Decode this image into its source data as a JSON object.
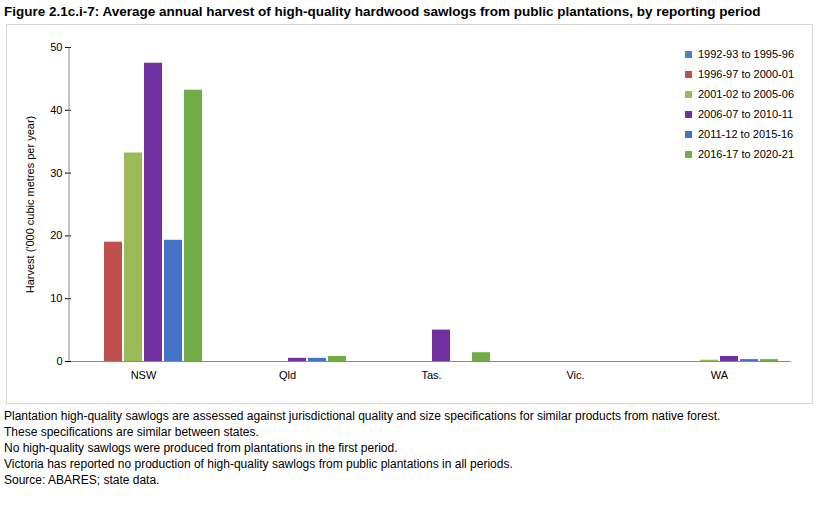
{
  "chart_data": {
    "type": "bar",
    "title": "Figure 2.1c.i-7: Average annual harvest of high-quality hardwood sawlogs from public plantations, by reporting period",
    "y_label": "Harvest ('000 cubic metres per year)",
    "categories": [
      "NSW",
      "Qld",
      "Tas.",
      "Vic.",
      "WA"
    ],
    "series": [
      {
        "name": "1992-93 to 1995-96",
        "color": "#4f81bd",
        "values": [
          0,
          0,
          0,
          0,
          0
        ]
      },
      {
        "name": "1996-97 to 2000-01",
        "color": "#c0504d",
        "values": [
          19,
          0,
          0,
          0,
          0
        ]
      },
      {
        "name": "2001-02 to 2005-06",
        "color": "#9bbb59",
        "values": [
          33.2,
          0,
          0,
          0,
          0.2
        ]
      },
      {
        "name": "2006-07 to 2010-11",
        "color": "#7030a0",
        "values": [
          47.5,
          0.5,
          5,
          0,
          0.8
        ]
      },
      {
        "name": "2011-12 to 2015-16",
        "color": "#4472c4",
        "values": [
          19.3,
          0.5,
          0,
          0,
          0.3
        ]
      },
      {
        "name": "2016-17 to 2020-21",
        "color": "#70ad47",
        "values": [
          43.2,
          0.8,
          1.4,
          0,
          0.3
        ]
      }
    ],
    "ylim": [
      0,
      50
    ],
    "yticks": [
      0,
      10,
      20,
      30,
      40,
      50
    ],
    "legend": "top-right",
    "notes": [
      "Plantation high-quality sawlogs are assessed against jurisdictional quality and size specifications for similar products from native forest.",
      "These specifications are similar between states.",
      "No high-quality sawlogs were produced from plantations in the first period.",
      "Victoria has reported no production of high-quality sawlogs from public plantations in all periods.",
      "Source: ABARES; state data."
    ]
  }
}
